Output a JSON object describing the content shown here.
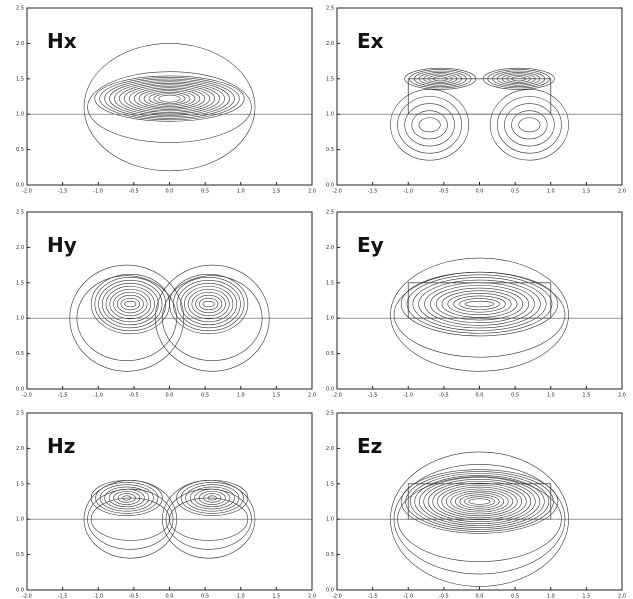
{
  "chart_data": [
    {
      "type": "contour",
      "title": "Hx",
      "xlim": [
        -2,
        2
      ],
      "ylim": [
        0,
        2.5
      ],
      "xticks": [
        {
          "value": -2,
          "label": "-2.0"
        },
        {
          "value": -1.5,
          "label": "-1.5"
        },
        {
          "value": -1,
          "label": "-1.0"
        },
        {
          "value": -0.5,
          "label": "-0.5"
        },
        {
          "value": 0,
          "label": "0.0"
        },
        {
          "value": 0.5,
          "label": "0.5"
        },
        {
          "value": 1,
          "label": "1.0"
        },
        {
          "value": 1.5,
          "label": "1.5"
        },
        {
          "value": 2,
          "label": "2.0"
        }
      ],
      "yticks": [
        {
          "value": 0,
          "label": "0.0"
        },
        {
          "value": 0.5,
          "label": "0.5"
        },
        {
          "value": 1,
          "label": "1.0"
        },
        {
          "value": 1.5,
          "label": "1.5"
        },
        {
          "value": 2,
          "label": "2.0"
        },
        {
          "value": 2.5,
          "label": "2.5"
        }
      ]
    },
    {
      "type": "contour",
      "title": "Ex",
      "xlim": [
        -2,
        2
      ],
      "ylim": [
        0,
        2.5
      ],
      "xticks": [
        {
          "value": -2,
          "label": "-2.0"
        },
        {
          "value": -1.5,
          "label": "-1.5"
        },
        {
          "value": -1,
          "label": "-1.0"
        },
        {
          "value": -0.5,
          "label": "-0.5"
        },
        {
          "value": 0,
          "label": "0.0"
        },
        {
          "value": 0.5,
          "label": "0.5"
        },
        {
          "value": 1,
          "label": "1.0"
        },
        {
          "value": 1.5,
          "label": "1.5"
        },
        {
          "value": 2,
          "label": "2.0"
        }
      ],
      "yticks": [
        {
          "value": 0,
          "label": "0.0"
        },
        {
          "value": 0.5,
          "label": "0.5"
        },
        {
          "value": 1,
          "label": "1.0"
        },
        {
          "value": 1.5,
          "label": "1.5"
        },
        {
          "value": 2,
          "label": "2.0"
        },
        {
          "value": 2.5,
          "label": "2.5"
        }
      ]
    },
    {
      "type": "contour",
      "title": "Hy",
      "xlim": [
        -2,
        2
      ],
      "ylim": [
        0,
        2.5
      ],
      "xticks": [
        {
          "value": -2,
          "label": "-2.0"
        },
        {
          "value": -1.5,
          "label": "-1.5"
        },
        {
          "value": -1,
          "label": "-1.0"
        },
        {
          "value": -0.5,
          "label": "-0.5"
        },
        {
          "value": 0,
          "label": "0.0"
        },
        {
          "value": 0.5,
          "label": "0.5"
        },
        {
          "value": 1,
          "label": "1.0"
        },
        {
          "value": 1.5,
          "label": "1.5"
        },
        {
          "value": 2,
          "label": "2.0"
        }
      ],
      "yticks": [
        {
          "value": 0,
          "label": "0.0"
        },
        {
          "value": 0.5,
          "label": "0.5"
        },
        {
          "value": 1,
          "label": "1.0"
        },
        {
          "value": 1.5,
          "label": "1.5"
        },
        {
          "value": 2,
          "label": "2.0"
        },
        {
          "value": 2.5,
          "label": "2.5"
        }
      ]
    },
    {
      "type": "contour",
      "title": "Ey",
      "xlim": [
        -2,
        2
      ],
      "ylim": [
        0,
        2.5
      ],
      "xticks": [
        {
          "value": -2,
          "label": "-2.0"
        },
        {
          "value": -1.5,
          "label": "-1.5"
        },
        {
          "value": -1,
          "label": "-1.0"
        },
        {
          "value": -0.5,
          "label": "-0.5"
        },
        {
          "value": 0,
          "label": "0.0"
        },
        {
          "value": 0.5,
          "label": "0.5"
        },
        {
          "value": 1,
          "label": "1.0"
        },
        {
          "value": 1.5,
          "label": "1.5"
        },
        {
          "value": 2,
          "label": "2.0"
        }
      ],
      "yticks": [
        {
          "value": 0,
          "label": "0.0"
        },
        {
          "value": 0.5,
          "label": "0.5"
        },
        {
          "value": 1,
          "label": "1.0"
        },
        {
          "value": 1.5,
          "label": "1.5"
        },
        {
          "value": 2,
          "label": "2.0"
        },
        {
          "value": 2.5,
          "label": "2.5"
        }
      ]
    },
    {
      "type": "contour",
      "title": "Hz",
      "xlim": [
        -2,
        2
      ],
      "ylim": [
        0,
        2.5
      ],
      "xticks": [
        {
          "value": -2,
          "label": "-2.0"
        },
        {
          "value": -1.5,
          "label": "-1.5"
        },
        {
          "value": -1,
          "label": "-1.0"
        },
        {
          "value": -0.5,
          "label": "-0.5"
        },
        {
          "value": 0,
          "label": "0.0"
        },
        {
          "value": 0.5,
          "label": "0.5"
        },
        {
          "value": 1,
          "label": "1.0"
        },
        {
          "value": 1.5,
          "label": "1.5"
        },
        {
          "value": 2,
          "label": "2.0"
        }
      ],
      "yticks": [
        {
          "value": 0,
          "label": "0.0"
        },
        {
          "value": 0.5,
          "label": "0.5"
        },
        {
          "value": 1,
          "label": "1.0"
        },
        {
          "value": 1.5,
          "label": "1.5"
        },
        {
          "value": 2,
          "label": "2.0"
        },
        {
          "value": 2.5,
          "label": "2.5"
        }
      ]
    },
    {
      "type": "contour",
      "title": "Ez",
      "xlim": [
        -2,
        2
      ],
      "ylim": [
        0,
        2.5
      ],
      "xticks": [
        {
          "value": -2,
          "label": "-2.0"
        },
        {
          "value": -1.5,
          "label": "-1.5"
        },
        {
          "value": -1,
          "label": "-1.0"
        },
        {
          "value": -0.5,
          "label": "-0.5"
        },
        {
          "value": 0,
          "label": "0.0"
        },
        {
          "value": 0.5,
          "label": "0.5"
        },
        {
          "value": 1,
          "label": "1.0"
        },
        {
          "value": 1.5,
          "label": "1.5"
        },
        {
          "value": 2,
          "label": "2.0"
        }
      ],
      "yticks": [
        {
          "value": 0,
          "label": "0.0"
        },
        {
          "value": 0.5,
          "label": "0.5"
        },
        {
          "value": 1,
          "label": "1.0"
        },
        {
          "value": 1.5,
          "label": "1.5"
        },
        {
          "value": 2,
          "label": "2.0"
        },
        {
          "value": 2.5,
          "label": "2.5"
        }
      ]
    }
  ]
}
